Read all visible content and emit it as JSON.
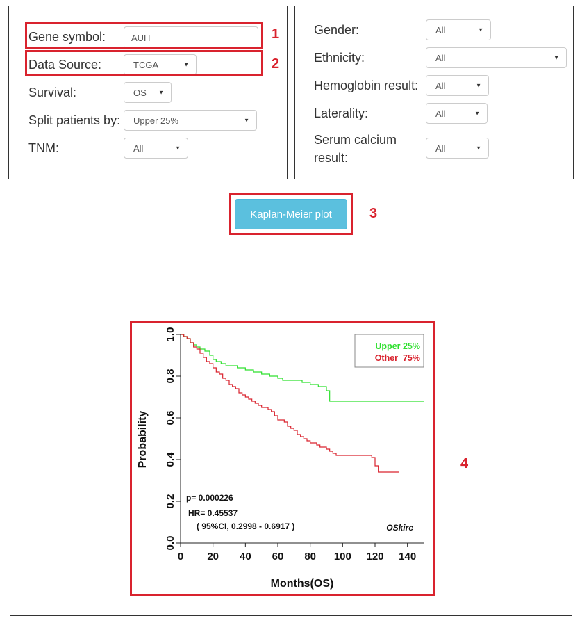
{
  "left_form": {
    "gene_symbol": {
      "label": "Gene symbol:",
      "value": "AUH"
    },
    "data_source": {
      "label": "Data Source:",
      "value": "TCGA"
    },
    "survival": {
      "label": "Survival:",
      "value": "OS"
    },
    "split": {
      "label": "Split patients by:",
      "value": "Upper 25%"
    },
    "tnm": {
      "label": "TNM:",
      "value": "All"
    }
  },
  "right_form": {
    "gender": {
      "label": "Gender:",
      "value": "All"
    },
    "ethnicity": {
      "label": "Ethnicity:",
      "value": "All"
    },
    "hemoglobin": {
      "label": "Hemoglobin result:",
      "value": "All"
    },
    "laterality": {
      "label": "Laterality:",
      "value": "All"
    },
    "serum_calcium": {
      "label_line1": "Serum calcium",
      "label_line2": "result:",
      "value": "All"
    }
  },
  "button": {
    "label": "Kaplan-Meier plot"
  },
  "markers": {
    "m1": "1",
    "m2": "2",
    "m3": "3",
    "m4": "4"
  },
  "colors": {
    "upper": "#2ee02e",
    "other": "#d9232e",
    "accent_red": "#d9232e",
    "button": "#5bc0de"
  },
  "chart_data": {
    "type": "line",
    "xlabel": "Months(OS)",
    "ylabel": "Probability",
    "xlim": [
      0,
      150
    ],
    "ylim": [
      0,
      1
    ],
    "xticks": [
      0,
      20,
      40,
      60,
      80,
      100,
      120,
      140
    ],
    "yticks": [
      0.0,
      0.2,
      0.4,
      0.6,
      0.8,
      1.0
    ],
    "legend_position": "top-right",
    "series": [
      {
        "name": "Upper 25%",
        "color": "#2ee02e",
        "x": [
          0,
          2,
          4,
          6,
          8,
          10,
          12,
          15,
          18,
          20,
          22,
          25,
          28,
          30,
          35,
          40,
          45,
          50,
          55,
          60,
          63,
          66,
          70,
          75,
          80,
          85,
          90,
          92,
          95,
          100,
          105,
          110,
          115,
          120,
          130,
          140,
          150
        ],
        "y": [
          1.0,
          0.99,
          0.98,
          0.96,
          0.95,
          0.94,
          0.93,
          0.92,
          0.9,
          0.88,
          0.87,
          0.86,
          0.85,
          0.85,
          0.84,
          0.83,
          0.82,
          0.81,
          0.8,
          0.79,
          0.78,
          0.78,
          0.78,
          0.77,
          0.76,
          0.75,
          0.73,
          0.68,
          0.68,
          0.68,
          0.68,
          0.68,
          0.68,
          0.68,
          0.68,
          0.68,
          0.68
        ]
      },
      {
        "name": "Other  75%",
        "color": "#d9232e",
        "x": [
          0,
          2,
          4,
          6,
          8,
          10,
          12,
          14,
          16,
          18,
          20,
          22,
          24,
          26,
          28,
          30,
          32,
          34,
          36,
          38,
          40,
          42,
          44,
          46,
          48,
          50,
          52,
          54,
          56,
          58,
          60,
          62,
          64,
          66,
          68,
          70,
          72,
          74,
          76,
          78,
          80,
          82,
          84,
          86,
          88,
          90,
          92,
          94,
          96,
          100,
          105,
          110,
          115,
          118,
          120,
          122,
          125,
          130,
          135
        ],
        "y": [
          1.0,
          0.99,
          0.98,
          0.96,
          0.94,
          0.93,
          0.91,
          0.89,
          0.87,
          0.86,
          0.84,
          0.82,
          0.81,
          0.79,
          0.78,
          0.76,
          0.75,
          0.74,
          0.72,
          0.71,
          0.7,
          0.69,
          0.68,
          0.67,
          0.66,
          0.65,
          0.65,
          0.64,
          0.63,
          0.61,
          0.59,
          0.59,
          0.58,
          0.56,
          0.55,
          0.54,
          0.52,
          0.51,
          0.5,
          0.49,
          0.48,
          0.48,
          0.47,
          0.46,
          0.46,
          0.45,
          0.44,
          0.43,
          0.42,
          0.42,
          0.42,
          0.42,
          0.42,
          0.41,
          0.37,
          0.34,
          0.34,
          0.34,
          0.34
        ]
      }
    ],
    "annotations": {
      "p": "p= 0.000226",
      "hr": "HR= 0.45537",
      "ci": "( 95%CI, 0.2998 - 0.6917 )",
      "tag": "OSkirc"
    }
  }
}
